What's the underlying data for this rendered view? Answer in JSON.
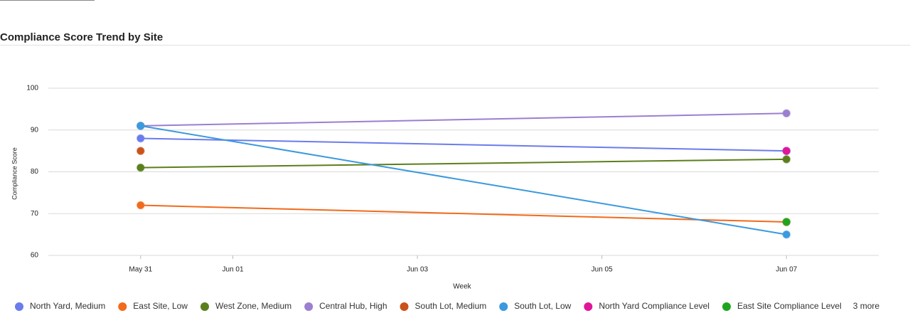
{
  "chart_data": {
    "type": "line",
    "title": "Compliance Score Trend by Site",
    "x_label": "Week",
    "y_label": "Compliance Score",
    "x": [
      "May 31",
      "Jun 07"
    ],
    "xlim": [
      "May 30",
      "Jun 08"
    ],
    "xticks": [
      "May 31",
      "Jun 01",
      "Jun 03",
      "Jun 05",
      "Jun 07"
    ],
    "ylim": [
      60,
      100
    ],
    "yticks": [
      60,
      70,
      80,
      90,
      100
    ],
    "grid": true,
    "series": [
      {
        "name": "North Yard, Medium",
        "color": "#6b7cec",
        "values": [
          88,
          85
        ]
      },
      {
        "name": "East Site, Low",
        "color": "#f26a1b",
        "values": [
          72,
          68
        ]
      },
      {
        "name": "West Zone, Medium",
        "color": "#5b7f1c",
        "values": [
          81,
          83
        ]
      },
      {
        "name": "Central Hub, High",
        "color": "#9b7fd0",
        "values": [
          91,
          94
        ]
      },
      {
        "name": "South Lot, Medium",
        "color": "#c9531a",
        "values": [
          85,
          null
        ]
      },
      {
        "name": "South Lot, Low",
        "color": "#3b99dd",
        "values": [
          91,
          65
        ]
      },
      {
        "name": "North Yard Compliance Level",
        "color": "#e0169a",
        "values": [
          null,
          85
        ]
      },
      {
        "name": "East Site Compliance Level",
        "color": "#1ea51e",
        "values": [
          null,
          68
        ]
      }
    ],
    "legend_more": "3 more"
  }
}
